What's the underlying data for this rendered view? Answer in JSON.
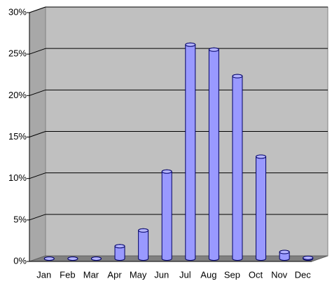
{
  "chart_data": {
    "type": "bar",
    "categories": [
      "Jan",
      "Feb",
      "Mar",
      "Apr",
      "May",
      "Jun",
      "Jul",
      "Aug",
      "Sep",
      "Oct",
      "Nov",
      "Dec"
    ],
    "values": [
      0,
      0,
      0,
      1.5,
      3.4,
      10.5,
      25.8,
      25.2,
      22.0,
      12.3,
      0.8,
      0.1
    ],
    "color": "#9999ff",
    "ylim": [
      0,
      30
    ],
    "yticks": [
      {
        "value": 0,
        "label": "0%"
      },
      {
        "value": 5,
        "label": "5%"
      },
      {
        "value": 10,
        "label": "10%"
      },
      {
        "value": 15,
        "label": "15%"
      },
      {
        "value": 20,
        "label": "20%"
      },
      {
        "value": 25,
        "label": "25%"
      },
      {
        "value": 30,
        "label": "30%"
      }
    ],
    "grid": true
  }
}
